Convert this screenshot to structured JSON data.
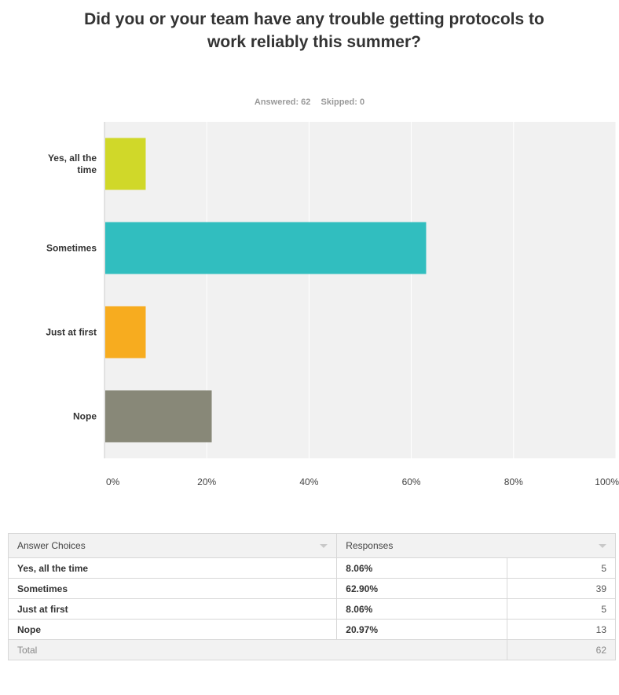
{
  "question": {
    "title": "Did you or your team have any trouble getting protocols to work reliably this summer?",
    "answered": "Answered: 62",
    "skipped": "Skipped: 0"
  },
  "chart_data": {
    "type": "bar",
    "orientation": "horizontal",
    "categories": [
      "Yes, all the time",
      "Sometimes",
      "Just at first",
      "Nope"
    ],
    "category_labels": [
      [
        "Yes, all the",
        "time"
      ],
      [
        "Sometimes"
      ],
      [
        "Just at first"
      ],
      [
        "Nope"
      ]
    ],
    "values": [
      8.06,
      62.9,
      8.06,
      20.97
    ],
    "colors": [
      "#d0d829",
      "#31bebf",
      "#f7ac1f",
      "#888878"
    ],
    "xlim": [
      0,
      100
    ],
    "xticks": [
      "0%",
      "20%",
      "40%",
      "60%",
      "80%",
      "100%"
    ],
    "grid": true,
    "plot_background": "#f1f1f1"
  },
  "table": {
    "header": {
      "choice": "Answer Choices",
      "responses": "Responses"
    },
    "rows": [
      {
        "choice": "Yes, all the time",
        "pct": "8.06%",
        "count": "5"
      },
      {
        "choice": "Sometimes",
        "pct": "62.90%",
        "count": "39"
      },
      {
        "choice": "Just at first",
        "pct": "8.06%",
        "count": "5"
      },
      {
        "choice": "Nope",
        "pct": "20.97%",
        "count": "13"
      }
    ],
    "total": {
      "label": "Total",
      "count": "62"
    }
  }
}
